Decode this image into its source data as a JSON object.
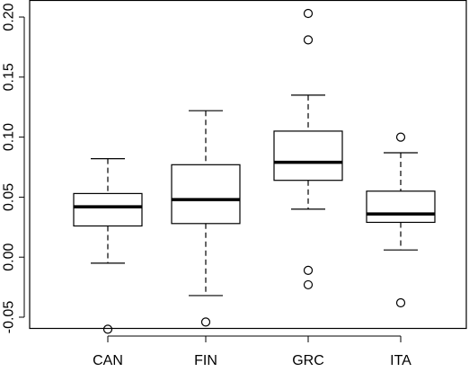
{
  "chart_data": {
    "type": "boxplot",
    "title": "",
    "xlabel": "",
    "ylabel": "",
    "categories": [
      "CAN",
      "FIN",
      "GRC",
      "ITA"
    ],
    "ylim": [
      -0.07,
      0.21
    ],
    "y_ticks": [
      -0.05,
      0.0,
      0.05,
      0.1,
      0.15,
      0.2
    ],
    "y_tick_labels": [
      "-0.05",
      "0.00",
      "0.05",
      "0.10",
      "0.15",
      "0.20"
    ],
    "boxes": [
      {
        "category": "CAN",
        "whisker_low": -0.005,
        "q1": 0.026,
        "median": 0.042,
        "q3": 0.053,
        "whisker_high": 0.082,
        "outliers": [
          -0.06
        ]
      },
      {
        "category": "FIN",
        "whisker_low": -0.032,
        "q1": 0.028,
        "median": 0.048,
        "q3": 0.077,
        "whisker_high": 0.122,
        "outliers": [
          -0.054
        ]
      },
      {
        "category": "GRC",
        "whisker_low": 0.04,
        "q1": 0.064,
        "median": 0.079,
        "q3": 0.105,
        "whisker_high": 0.135,
        "outliers": [
          0.203,
          0.181,
          -0.011,
          -0.023
        ]
      },
      {
        "category": "ITA",
        "whisker_low": 0.006,
        "q1": 0.029,
        "median": 0.036,
        "q3": 0.055,
        "whisker_high": 0.087,
        "outliers": [
          0.1,
          -0.038
        ]
      }
    ],
    "grid": false,
    "legend": "none"
  }
}
